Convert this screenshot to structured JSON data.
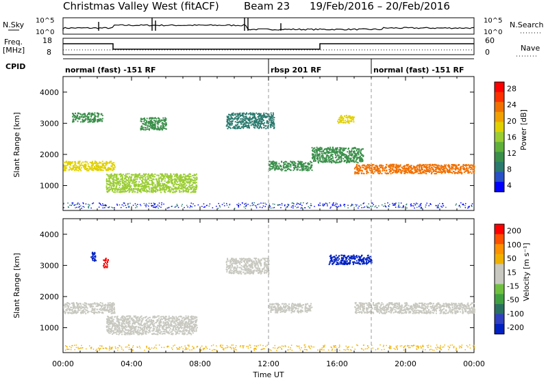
{
  "header": {
    "title": "Christmas Valley West (fitACF)",
    "beam": "Beam 23",
    "date_range": "19/Feb/2016 – 20/Feb/2016"
  },
  "noise_panel": {
    "left_label": "N.Sky",
    "right_label": "N.Search",
    "left_ticks": [
      "10^5",
      "10^0"
    ],
    "right_ticks": [
      "10^5",
      "10^0"
    ]
  },
  "freq_panel": {
    "left_label_1": "Freq.",
    "left_label_2": "[MHz]",
    "right_label": "Nave",
    "left_ticks": [
      "18",
      "8"
    ],
    "right_ticks": [
      "60",
      "0"
    ]
  },
  "cpid_panel": {
    "label": "CPID",
    "segments": [
      {
        "label": "normal (fast) -151 RF",
        "start_hr": 0,
        "end_hr": 12
      },
      {
        "label": "rbsp 201 RF",
        "start_hr": 12,
        "end_hr": 18
      },
      {
        "label": "normal (fast) -151 RF",
        "start_hr": 18,
        "end_hr": 24
      }
    ]
  },
  "time_axis": {
    "xlabel": "Time UT",
    "ticks": [
      "00:00",
      "04:00",
      "08:00",
      "12:00",
      "16:00",
      "20:00",
      "00:00"
    ]
  },
  "colors": {
    "power_scale": [
      "#0000ff",
      "#2850c8",
      "#2a7a6e",
      "#3a8f4a",
      "#5fb03a",
      "#9acd32",
      "#e0d000",
      "#f0a000",
      "#f07000",
      "#ff3000",
      "#ff0000"
    ],
    "velocity_scale": [
      "#ff0000",
      "#ff5000",
      "#ff9000",
      "#f0b000",
      "#c8c8c0",
      "#c8c8c0",
      "#70c040",
      "#40a040",
      "#2a7060",
      "#3040c0",
      "#0020c0"
    ]
  },
  "chart_data": [
    {
      "type": "heatmap",
      "title": "",
      "xlabel": "Time UT",
      "ylabel": "Slant Range [km]",
      "x_range_hr": [
        0,
        24
      ],
      "ylim": [
        200,
        4500
      ],
      "yticks": [
        1000,
        2000,
        3000,
        4000
      ],
      "colorbar_label": "Power [dB]",
      "colorbar_ticks": [
        4,
        8,
        12,
        16,
        20,
        24,
        28
      ],
      "regions": [
        {
          "t_start": 0.0,
          "t_end": 3.0,
          "r_center": 1650,
          "r_width": 300,
          "level": 18
        },
        {
          "t_start": 0.5,
          "t_end": 2.3,
          "r_center": 3200,
          "r_width": 300,
          "level": 12
        },
        {
          "t_start": 2.5,
          "t_end": 7.8,
          "r_center": 1100,
          "r_width": 600,
          "level": 16
        },
        {
          "t_start": 4.5,
          "t_end": 6.0,
          "r_center": 3000,
          "r_width": 400,
          "level": 10
        },
        {
          "t_start": 9.5,
          "t_end": 12.3,
          "r_center": 3100,
          "r_width": 500,
          "level": 8
        },
        {
          "t_start": 12.0,
          "t_end": 14.5,
          "r_center": 1650,
          "r_width": 300,
          "level": 12
        },
        {
          "t_start": 14.5,
          "t_end": 17.5,
          "r_center": 2000,
          "r_width": 500,
          "level": 10
        },
        {
          "t_start": 16.0,
          "t_end": 17.0,
          "r_center": 3150,
          "r_width": 250,
          "level": 18
        },
        {
          "t_start": 17.0,
          "t_end": 24.0,
          "r_center": 1550,
          "r_width": 300,
          "level": 24
        }
      ]
    },
    {
      "type": "heatmap",
      "title": "",
      "xlabel": "Time UT",
      "ylabel": "Slant Range [km]",
      "x_range_hr": [
        0,
        24
      ],
      "ylim": [
        200,
        4500
      ],
      "yticks": [
        1000,
        2000,
        3000,
        4000
      ],
      "colorbar_label": "Velocity [m s⁻¹]",
      "colorbar_ticks": [
        200,
        100,
        50,
        15,
        -15,
        -50,
        -100,
        -200
      ],
      "regions": [
        {
          "t_start": 0.0,
          "t_end": 3.0,
          "r_center": 1650,
          "r_width": 350,
          "level": 0
        },
        {
          "t_start": 1.6,
          "t_end": 1.9,
          "r_center": 3300,
          "r_width": 300,
          "level": -200
        },
        {
          "t_start": 2.3,
          "t_end": 2.6,
          "r_center": 3100,
          "r_width": 300,
          "level": 200
        },
        {
          "t_start": 2.5,
          "t_end": 7.8,
          "r_center": 1100,
          "r_width": 600,
          "level": 40
        },
        {
          "t_start": 9.5,
          "t_end": 12.0,
          "r_center": 3000,
          "r_width": 500,
          "level": 0
        },
        {
          "t_start": 12.0,
          "t_end": 14.5,
          "r_center": 1650,
          "r_width": 300,
          "level": 40
        },
        {
          "t_start": 15.5,
          "t_end": 18.0,
          "r_center": 3200,
          "r_width": 300,
          "level": -200
        },
        {
          "t_start": 17.0,
          "t_end": 24.0,
          "r_center": 1650,
          "r_width": 350,
          "level": 0
        }
      ]
    }
  ]
}
